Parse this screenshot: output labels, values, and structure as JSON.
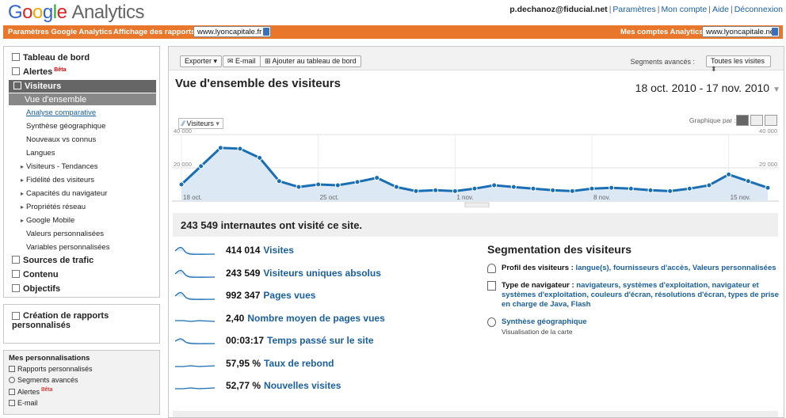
{
  "header": {
    "logo_google": [
      "G",
      "o",
      "o",
      "g",
      "l",
      "e"
    ],
    "logo_product": "Analytics",
    "user_email": "p.dechanoz@fiducial.net",
    "links": [
      "Paramètres",
      "Mon compte",
      "Aide",
      "Déconnexion"
    ]
  },
  "orange_bar": {
    "settings_label": "Paramètres Google Analytics",
    "report_label": "Affichage des rapports :",
    "report_value": "www.lyoncapitale.fr",
    "accounts_label": "Mes comptes Analytics :",
    "accounts_value": "www.lyoncapitale.net"
  },
  "sidebar": {
    "dashboard": "Tableau de bord",
    "alerts": "Alertes",
    "beta": "Bêta",
    "visitors": "Visiteurs",
    "overview": "Vue d'ensemble",
    "items": [
      "Analyse comparative",
      "Synthèse géographique",
      "Nouveaux vs connus",
      "Langues",
      "Visiteurs - Tendances",
      "Fidélité des visiteurs",
      "Capacités du navigateur",
      "Propriétés réseau",
      "Google Mobile",
      "Valeurs personnalisées",
      "Variables personnalisées"
    ],
    "traffic": "Sources de trafic",
    "content": "Contenu",
    "goals": "Objectifs",
    "create_reports": "Création de rapports personnalisés",
    "perso_title": "Mes personnalisations",
    "perso_items": [
      "Rapports personnalisés",
      "Segments avancés",
      "Alertes",
      "E-mail"
    ]
  },
  "toolbar": {
    "export": "Exporter",
    "email": "E-mail",
    "add_dashboard": "Ajouter au tableau de bord",
    "segments_label": "Segments avancés :",
    "segments_value": "Toutes les visites"
  },
  "report": {
    "title": "Vue d'ensemble des visiteurs",
    "date_range": "18 oct. 2010 - 17 nov. 2010",
    "metric_select": "Visiteurs",
    "graph_by": "Graphique par :",
    "summary": "243 549 internautes ont visité ce site."
  },
  "chart_data": {
    "type": "line",
    "series": [
      {
        "name": "Visiteurs",
        "values": [
          10000,
          21000,
          32000,
          31500,
          26000,
          12000,
          8500,
          10000,
          9500,
          11500,
          14000,
          8500,
          6000,
          6500,
          6000,
          7500,
          9500,
          8500,
          7500,
          6500,
          6000,
          7500,
          8000,
          7500,
          6500,
          6000,
          7500,
          9500,
          16000,
          12000,
          8000
        ]
      }
    ],
    "x_tick_labels": [
      "18 oct.",
      "25 oct.",
      "1 nov.",
      "8 nov.",
      "15 nov."
    ],
    "y_tick_labels": [
      "40 000",
      "20 000"
    ],
    "ylim": [
      0,
      40000
    ],
    "color": "#1a6eb4",
    "grid": true
  },
  "metrics": [
    {
      "value": "414 014",
      "label": "Visites"
    },
    {
      "value": "243 549",
      "label": "Visiteurs uniques absolus"
    },
    {
      "value": "992 347",
      "label": "Pages vues"
    },
    {
      "value": "2,40",
      "label": "Nombre moyen de pages vues"
    },
    {
      "value": "00:03:17",
      "label": "Temps passé sur le site"
    },
    {
      "value": "57,95 %",
      "label": "Taux de rebond"
    },
    {
      "value": "52,77 %",
      "label": "Nouvelles visites"
    }
  ],
  "segmentation": {
    "title": "Segmentation des visiteurs",
    "profile_label": "Profil des visiteurs :",
    "profile_links": "langue(s),  fournisseurs d'accès,  Valeurs personnalisées",
    "browser_label": "Type de navigateur :",
    "browser_links": "navigateurs,  systèmes d'exploitation,  navigateur et systèmes d'exploitation,  couleurs d'écran,  résolutions d'écran,  types de prise en charge de Java,  Flash",
    "geo_link": "Synthèse géographique",
    "geo_sub": "Visualisation de la carte"
  }
}
